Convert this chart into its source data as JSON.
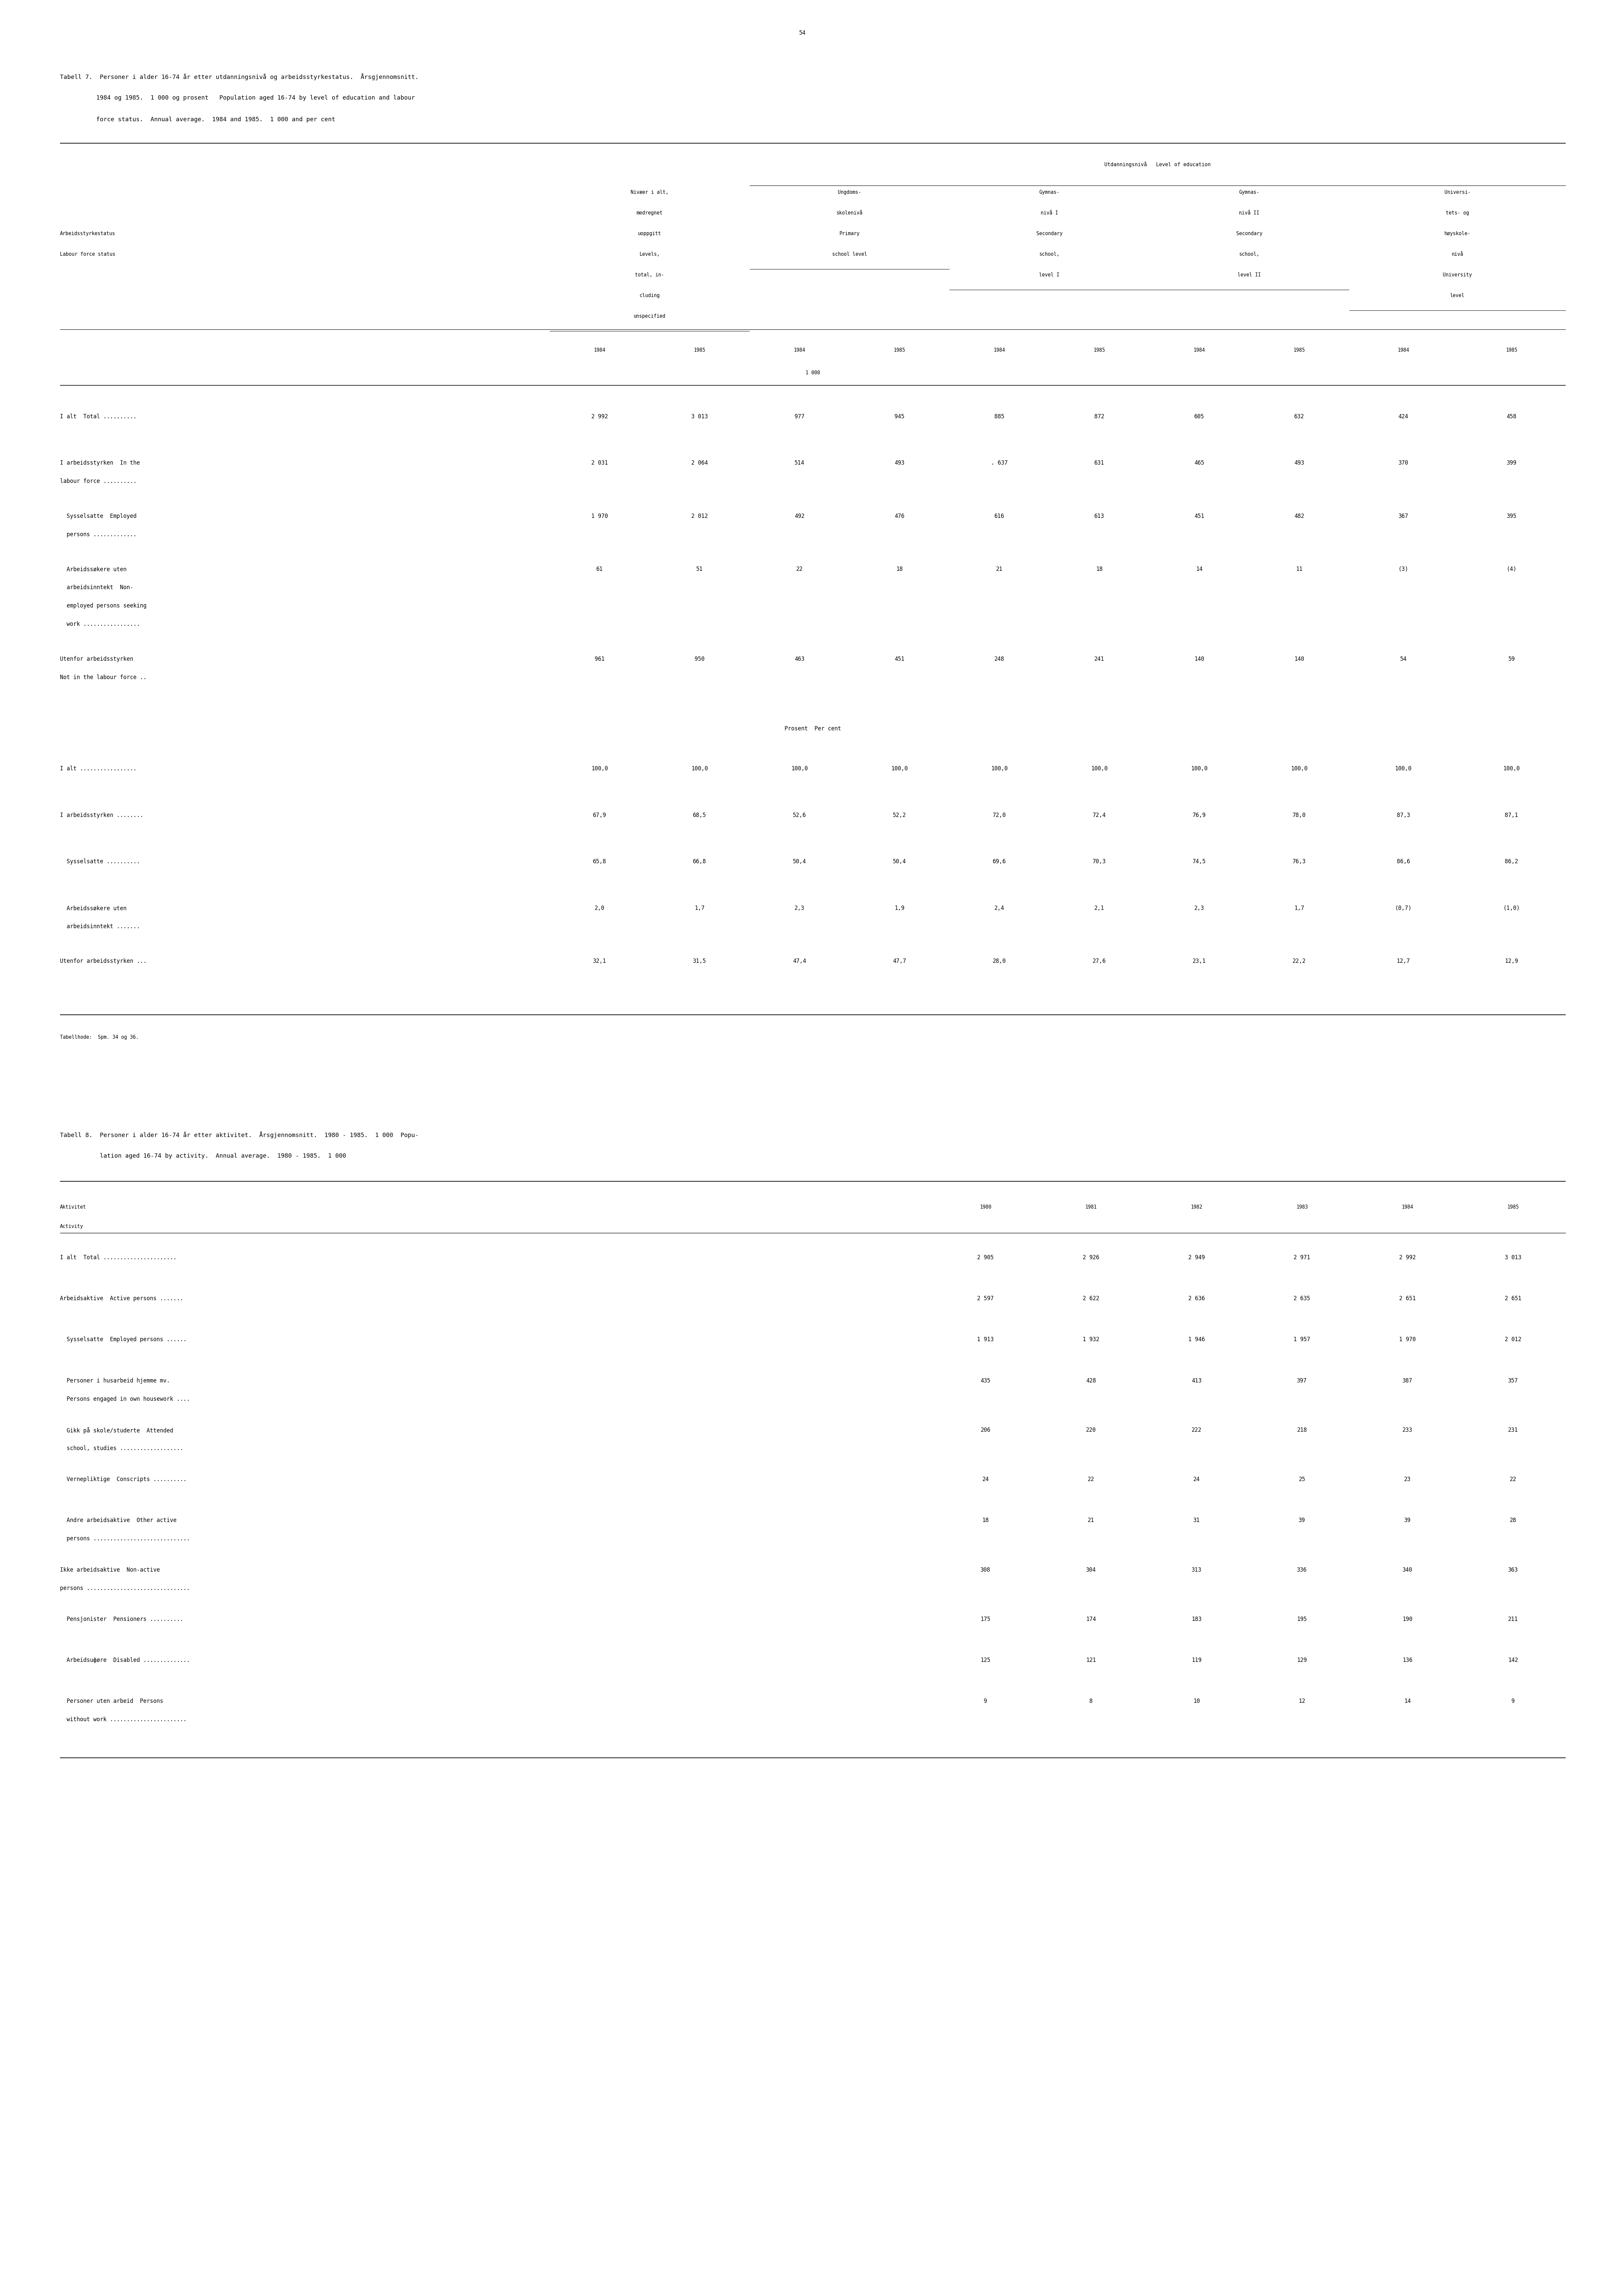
{
  "page_number": "54",
  "table7_title_line1": "Tabell 7.  Personer i alder 16-74 år etter utdanningsnivå og arbeidsstyrkestatus.  Årsgjennomsnitt.",
  "table7_title_line2": "          1984 og 1985.  1 000 og prosent   Population aged 16-74 by level of education and labour",
  "table7_title_line3": "          force status.  Annual average.  1984 and 1985.  1 000 and per cent",
  "table7_header_main": "Utdanningsnivå   Level of education",
  "table7_col_headers": [
    [
      "Nivæer i alt,",
      "medregnet",
      "uoppgitt",
      "Levels,",
      "total, in-",
      "cluding",
      "unspecified"
    ],
    [
      "Ungdoms-",
      "skolenivå",
      "Primary",
      "school level"
    ],
    [
      "Gymnas-",
      "nivå I",
      "Secondary",
      "school,",
      "level I"
    ],
    [
      "Gymnas-",
      "nivå II",
      "Secondary",
      "school,",
      "level II"
    ],
    [
      "Universi-",
      "tets- og",
      "høyskole-",
      "nivå",
      "University",
      "level"
    ]
  ],
  "table7_rows_1000": [
    {
      "labels": [
        "I alt  Total .........."
      ],
      "values": [
        "2 992",
        "3 013",
        "977",
        "945",
        "885",
        "872",
        "605",
        "632",
        "424",
        "458"
      ]
    },
    {
      "labels": [
        "I arbeidsstyrken  In the",
        "labour force .........."
      ],
      "values": [
        "2 031",
        "2 064",
        "514",
        "493",
        ". 637",
        "631",
        "465",
        "493",
        "370",
        "399"
      ]
    },
    {
      "labels": [
        "  Sysselsatte  Employed",
        "  persons ............."
      ],
      "values": [
        "1 970",
        "2 012",
        "492",
        "476",
        "616",
        "613",
        "451",
        "482",
        "367",
        "395"
      ]
    },
    {
      "labels": [
        "  Arbeidssøkere uten",
        "  arbeidsinntekt  Non-",
        "  employed persons seeking",
        "  work ................."
      ],
      "values": [
        "61",
        "51",
        "22",
        "18",
        "21",
        "18",
        "14",
        "11",
        "(3)",
        "(4)"
      ]
    },
    {
      "labels": [
        "Utenfor arbeidsstyrken",
        "Not in the labour force .."
      ],
      "values": [
        "961",
        "950",
        "463",
        "451",
        "248",
        "241",
        "140",
        "140",
        "54",
        "59"
      ]
    }
  ],
  "table7_prosent_label": "Prosent  Per cent",
  "table7_rows_pct": [
    {
      "labels": [
        "I alt ................."
      ],
      "values": [
        "100,0",
        "100,0",
        "100,0",
        "100,0",
        "100,0",
        "100,0",
        "100,0",
        "100,0",
        "100,0",
        "100,0"
      ]
    },
    {
      "labels": [
        "I arbeidsstyrken ........"
      ],
      "values": [
        "67,9",
        "68,5",
        "52,6",
        "52,2",
        "72,0",
        "72,4",
        "76,9",
        "78,0",
        "87,3",
        "87,1"
      ]
    },
    {
      "labels": [
        "  Sysselsatte .........."
      ],
      "values": [
        "65,8",
        "66,8",
        "50,4",
        "50,4",
        "69,6",
        "70,3",
        "74,5",
        "76,3",
        "86,6",
        "86,2"
      ]
    },
    {
      "labels": [
        "  Arbeidssøkere uten",
        "  arbeidsinntekt ......."
      ],
      "values": [
        "2,0",
        "1,7",
        "2,3",
        "1,9",
        "2,4",
        "2,1",
        "2,3",
        "1,7",
        "(0,7)",
        "(1,0)"
      ]
    },
    {
      "labels": [
        "Utenfor arbeidsstyrken ..."
      ],
      "values": [
        "32,1",
        "31,5",
        "47,4",
        "47,7",
        "28,0",
        "27,6",
        "23,1",
        "22,2",
        "12,7",
        "12,9"
      ]
    }
  ],
  "table7_footnote": "Tabellhode:  Spm. 34 og 36.",
  "table8_title_line1": "Tabell 8.  Personer i alder 16-74 år etter aktivitet.  Årsgjennomsnitt.  1980 - 1985.  1 000  Popu-",
  "table8_title_line2": "           lation aged 16-74 by activity.  Annual average.  1980 - 1985.  1 000",
  "table8_years": [
    "1980",
    "1981",
    "1982",
    "1983",
    "1984",
    "1985"
  ],
  "table8_rows": [
    {
      "labels": [
        "I alt  Total ......................"
      ],
      "values": [
        "2 905",
        "2 926",
        "2 949",
        "2 971",
        "2 992",
        "3 013"
      ]
    },
    {
      "labels": [
        "Arbeidsaktive  Active persons ......."
      ],
      "values": [
        "2 597",
        "2 622",
        "2 636",
        "2 635",
        "2 651",
        "2 651"
      ]
    },
    {
      "labels": [
        "  Sysselsatte  Employed persons ......"
      ],
      "values": [
        "1 913",
        "1 932",
        "1 946",
        "1 957",
        "1 970",
        "2 012"
      ]
    },
    {
      "labels": [
        "  Personer i husarbeid hjemme mv.",
        "  Persons engaged in own housework ...."
      ],
      "values": [
        "435",
        "428",
        "413",
        "397",
        "387",
        "357"
      ]
    },
    {
      "labels": [
        "  Gikk på skole/studerte  Attended",
        "  school, studies ..................."
      ],
      "values": [
        "206",
        "220",
        "222",
        "218",
        "233",
        "231"
      ]
    },
    {
      "labels": [
        "  Vernepliktige  Conscripts .........."
      ],
      "values": [
        "24",
        "22",
        "24",
        "25",
        "23",
        "22"
      ]
    },
    {
      "labels": [
        "  Andre arbeidsaktive  Other active",
        "  persons ............................."
      ],
      "values": [
        "18",
        "21",
        "31",
        "39",
        "39",
        "28"
      ]
    },
    {
      "labels": [
        "Ikke arbeidsaktive  Non-active",
        "persons ..............................."
      ],
      "values": [
        "308",
        "304",
        "313",
        "336",
        "340",
        "363"
      ]
    },
    {
      "labels": [
        "  Pensjonister  Pensioners .........."
      ],
      "values": [
        "175",
        "174",
        "183",
        "195",
        "190",
        "211"
      ]
    },
    {
      "labels": [
        "  Arbeidsuфøre  Disabled .............."
      ],
      "values": [
        "125",
        "121",
        "119",
        "129",
        "136",
        "142"
      ]
    },
    {
      "labels": [
        "  Personer uten arbeid  Persons",
        "  without work ......................."
      ],
      "values": [
        "9",
        "8",
        "10",
        "12",
        "14",
        "9"
      ]
    }
  ]
}
